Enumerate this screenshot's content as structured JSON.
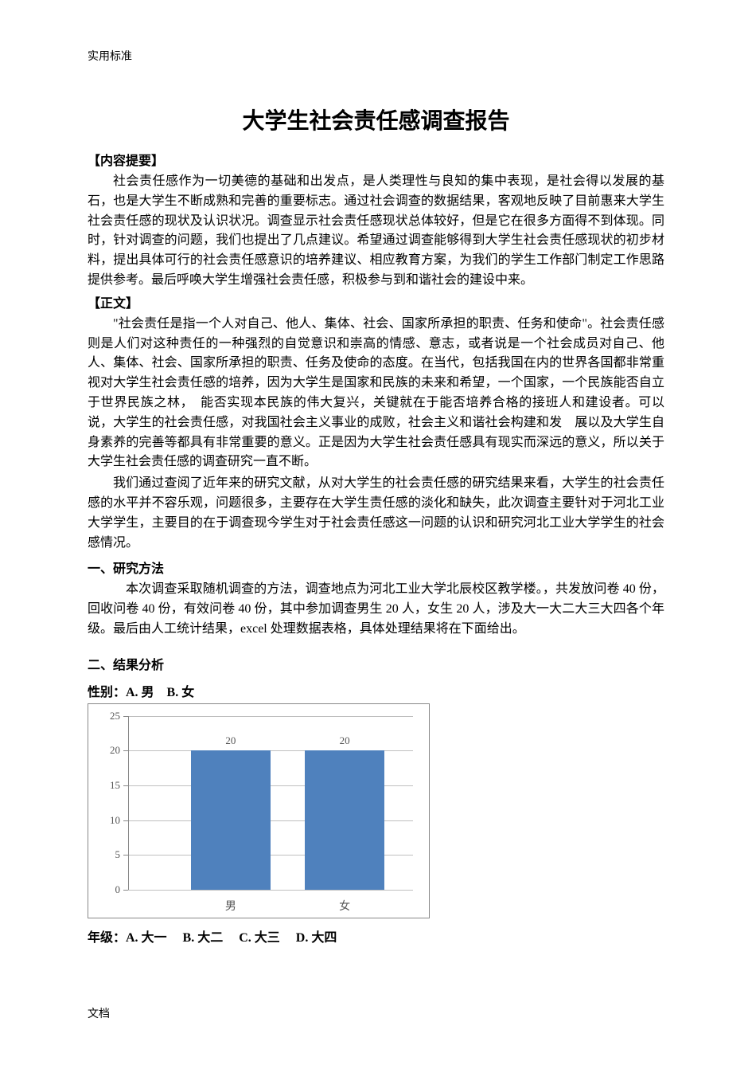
{
  "header": "实用标准",
  "title": "大学生社会责任感调查报告",
  "abstract_label": "【内容提要】",
  "abstract_p1": "社会责任感作为一切美德的基础和出发点，是人类理性与良知的集中表现，是社会得以发展的基石，也是大学生不断成熟和完善的重要标志。通过社会调查的数据结果，客观地反映了目前惠来大学生社会责任感的现状及认识状况。调查显示社会责任感现状总体较好，但是它在很多方面得不到体现。同时，针对调查的问题，我们也提出了几点建议。希望通过调查能够得到大学生社会责任感现状的初步材料，提出具体可行的社会责任感意识的培养建议、相应教育方案，为我们的学生工作部门制定工作思路提供参考。最后呼唤大学生增强社会责任感，积极参与到和谐社会的建设中来。",
  "body_label": "【正文】",
  "body_p1": "\"社会责任是指一个人对自己、他人、集体、社会、国家所承担的职责、任务和使命\"。社会责任感则是人们对这种责任的一种强烈的自觉意识和崇高的情感、意志，或者说是一个社会成员对自己、他人、集体、社会、国家所承担的职责、任务及使命的态度。在当代，包括我国在内的世界各国都非常重视对大学生社会责任感的培养，因为大学生是国家和民族的未来和希望，一个国家，一个民族能否自立于世界民族之林，　能否实现本民族的伟大复兴，关键就在于能否培养合格的接班人和建设者。可以说，大学生的社会责任感，对我国社会主义事业的成败，社会主义和谐社会构建和发　展以及大学生自身素养的完善等都具有非常重要的意义。正是因为大学生社会责任感具有现实而深远的意义，所以关于大学生社会责任感的调查研究一直不断。",
  "body_p2": "我们通过查阅了近年来的研究文献，从对大学生的社会责任感的研究结果来看，大学生的社会责任感的水平并不容乐观，问题很多，主要存在大学生责任感的淡化和缺失，此次调查主要针对于河北工业大学学生，主要目的在于调查现今学生对于社会责任感这一问题的认识和研究河北工业大学学生的社会感情况。",
  "section1_label": "一、研究方法",
  "section1_p1": "本次调查采取随机调查的方法，调查地点为河北工业大学北辰校区教学楼。，共发放问卷 40 份，回收问卷 40 份，有效问卷 40 份，其中参加调查男生 20 人，女生 20 人，涉及大一大二大三大四各个年级。最后由人工统计结果，excel 处理数据表格，具体处理结果将在下面给出。",
  "section2_label": "二、结果分析",
  "q1_label": "性别：A. 男　B. 女",
  "q2_label": "年级：A. 大一　 B. 大二　 C. 大三　 D. 大四",
  "footer": "文档",
  "gender_chart": {
    "type": "bar",
    "categories": [
      "男",
      "女"
    ],
    "values": [
      20,
      20
    ],
    "bar_color": "#4f81bd",
    "ylim": [
      0,
      25
    ],
    "ytick_step": 5,
    "yticks": [
      0,
      5,
      10,
      15,
      20,
      25
    ],
    "background_color": "#ffffff",
    "grid_color": "#bfbfbf",
    "border_color": "#888888",
    "value_label_color": "#555555",
    "axis_label_color": "#555555",
    "bar_width_pct": 28,
    "bar_positions_pct": [
      22,
      62
    ],
    "label_fontsize": 13
  }
}
